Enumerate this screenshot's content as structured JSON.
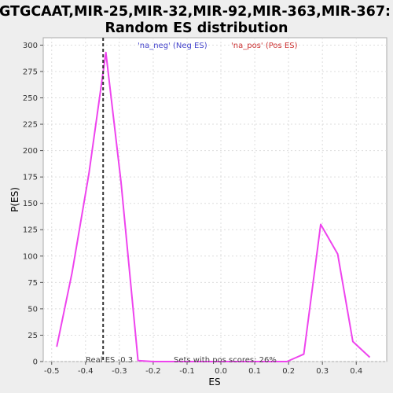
{
  "chart_data": {
    "type": "line",
    "title_line1": "GTGCAAT,MIR-25,MIR-32,MIR-92,MIR-363,MIR-367:",
    "title_line2": "Random ES distribution",
    "xlabel": "ES",
    "ylabel": "P(ES)",
    "xlim": [
      -0.525,
      0.49
    ],
    "ylim": [
      0,
      307
    ],
    "xticks": [
      -0.5,
      -0.4,
      -0.3,
      -0.2,
      -0.1,
      0.0,
      0.1,
      0.2,
      0.3,
      0.4
    ],
    "xtick_labels": [
      "-0.5",
      "-0.4",
      "-0.3",
      "-0.2",
      "-0.1",
      "0.0",
      "0.1",
      "0.2",
      "0.3",
      "0.4"
    ],
    "yticks": [
      0,
      25,
      50,
      75,
      100,
      125,
      150,
      175,
      200,
      225,
      250,
      275,
      300
    ],
    "ytick_labels": [
      "0",
      "25",
      "50",
      "75",
      "100",
      "125",
      "150",
      "175",
      "200",
      "225",
      "250",
      "275",
      "300"
    ],
    "grid": true,
    "series": [
      {
        "color": "#ee44ee",
        "x": [
          -0.485,
          -0.44,
          -0.39,
          -0.34,
          -0.295,
          -0.245,
          -0.2,
          -0.1,
          0.0,
          0.1,
          0.195,
          0.245,
          0.295,
          0.345,
          0.39,
          0.44
        ],
        "y": [
          14,
          84,
          178,
          293,
          170,
          1,
          0,
          0,
          0,
          0,
          0,
          7,
          130,
          102,
          19,
          4
        ]
      }
    ],
    "legend": [
      {
        "label": "'na_neg' (Neg ES)",
        "color": "#4444cc"
      },
      {
        "label": "'na_pos' (Pos ES)",
        "color": "#cc3333"
      }
    ],
    "legend_position": "top",
    "real_es": {
      "x": -0.348,
      "label": "Real ES -0.3",
      "color": "#333333"
    },
    "annotation": "Sets with pos scores: 26%"
  }
}
